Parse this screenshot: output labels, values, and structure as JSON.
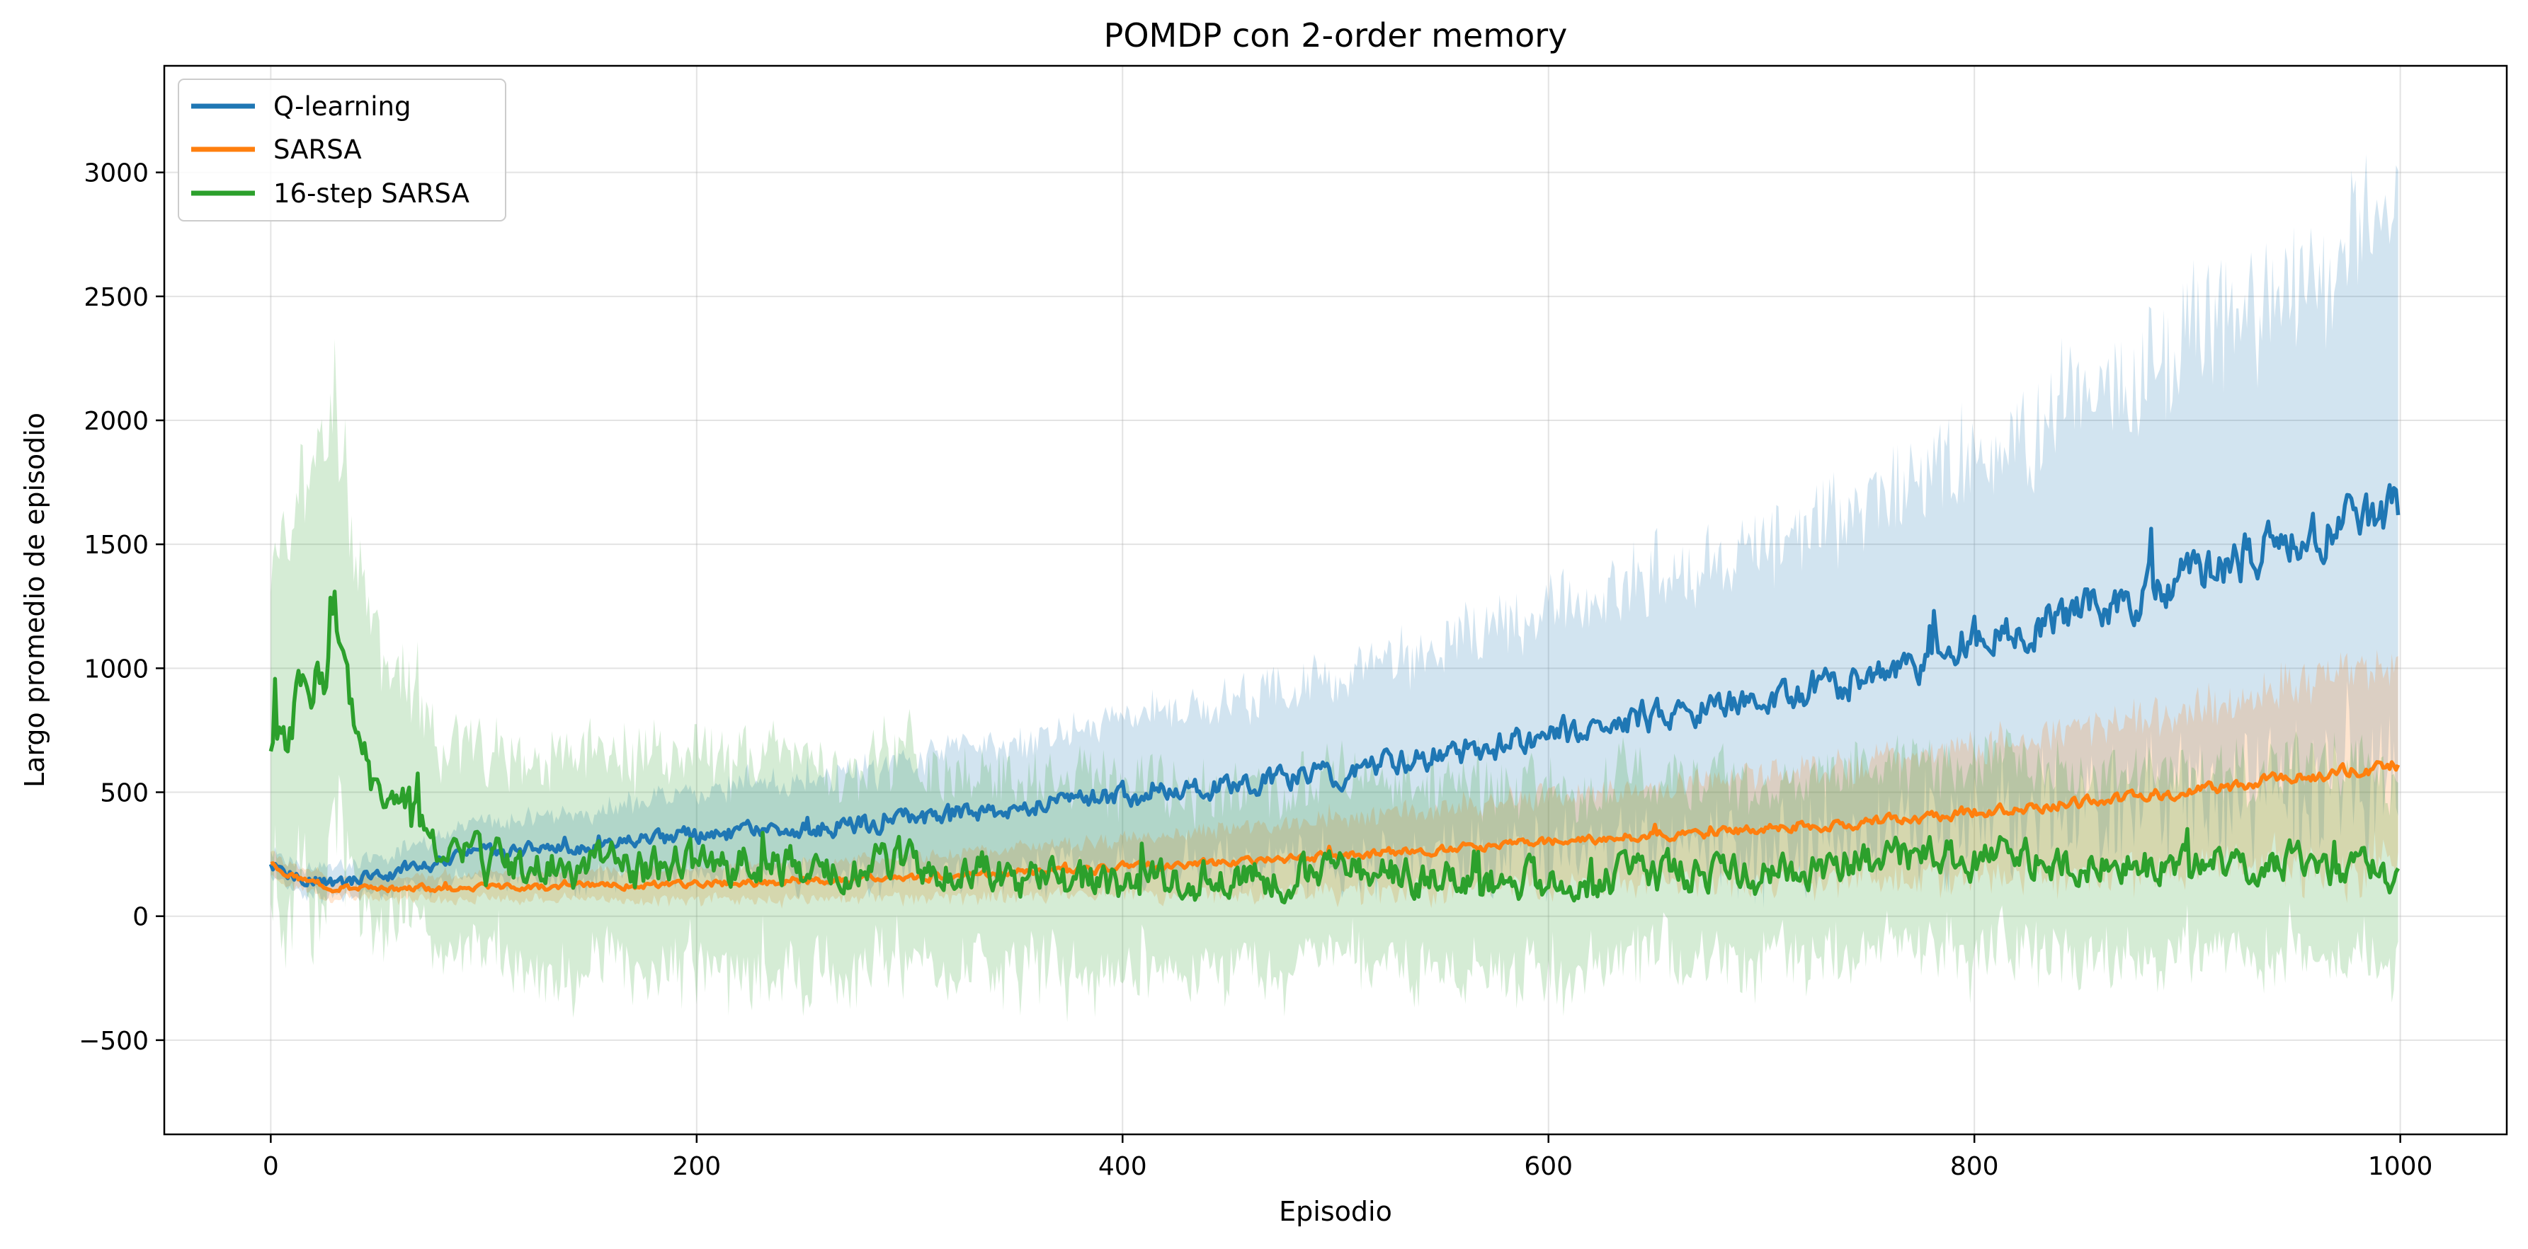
{
  "chart_data": {
    "type": "line",
    "title": "POMDP con 2-order memory",
    "xlabel": "Episodio",
    "ylabel": "Largo promedio de episodio",
    "xlim": [
      -50,
      1050
    ],
    "ylim": [
      -880,
      3430
    ],
    "xticks": [
      0,
      200,
      400,
      600,
      800,
      1000
    ],
    "yticks": [
      -500,
      0,
      500,
      1000,
      1500,
      2000,
      2500,
      3000
    ],
    "xtick_labels": [
      "0",
      "200",
      "400",
      "600",
      "800",
      "1000"
    ],
    "ytick_labels": [
      "−500",
      "0",
      "500",
      "1000",
      "1500",
      "2000",
      "2500",
      "3000"
    ],
    "grid": true,
    "legend_position": "top-left",
    "n_episodes": 1000,
    "series": [
      {
        "name": "Q-learning",
        "color": "#1f77b4",
        "anchors_x": [
          0,
          10,
          30,
          50,
          100,
          150,
          200,
          250,
          300,
          350,
          400,
          450,
          500,
          550,
          600,
          650,
          700,
          750,
          800,
          850,
          900,
          950,
          1000
        ],
        "anchors_mean": [
          220,
          170,
          130,
          165,
          250,
          290,
          320,
          350,
          390,
          440,
          480,
          530,
          580,
          650,
          730,
          810,
          880,
          970,
          1100,
          1230,
          1370,
          1520,
          1650
        ],
        "anchors_band": [
          60,
          55,
          60,
          70,
          110,
          140,
          170,
          200,
          230,
          260,
          300,
          340,
          380,
          440,
          500,
          560,
          620,
          680,
          780,
          860,
          950,
          1050,
          1150
        ],
        "noise": 55
      },
      {
        "name": "SARSA",
        "color": "#ff7f0e",
        "anchors_x": [
          0,
          10,
          30,
          50,
          100,
          150,
          200,
          250,
          300,
          350,
          400,
          450,
          500,
          550,
          600,
          650,
          700,
          750,
          800,
          850,
          900,
          950,
          1000
        ],
        "anchors_mean": [
          215,
          160,
          115,
          110,
          115,
          120,
          130,
          140,
          155,
          175,
          195,
          220,
          245,
          270,
          300,
          325,
          345,
          380,
          420,
          460,
          500,
          560,
          610
        ],
        "anchors_band": [
          50,
          45,
          45,
          45,
          55,
          60,
          65,
          75,
          85,
          100,
          115,
          130,
          150,
          165,
          185,
          200,
          220,
          240,
          270,
          300,
          330,
          370,
          420
        ],
        "noise": 28
      },
      {
        "name": "16-step SARSA",
        "color": "#2ca02c",
        "anchors_x": [
          0,
          5,
          10,
          15,
          20,
          25,
          30,
          35,
          40,
          45,
          50,
          60,
          70,
          80,
          100,
          150,
          200,
          250,
          300,
          350,
          400,
          450,
          500,
          550,
          600,
          650,
          700,
          750,
          800,
          850,
          900,
          950,
          1000
        ],
        "anchors_mean": [
          680,
          800,
          760,
          920,
          980,
          940,
          1150,
          950,
          800,
          600,
          520,
          470,
          420,
          300,
          230,
          190,
          210,
          200,
          230,
          160,
          130,
          150,
          170,
          150,
          130,
          170,
          170,
          230,
          240,
          210,
          190,
          220,
          160
        ],
        "anchors_band": [
          600,
          700,
          750,
          800,
          850,
          850,
          850,
          800,
          700,
          600,
          550,
          480,
          450,
          400,
          420,
          440,
          450,
          440,
          430,
          400,
          380,
          370,
          380,
          380,
          380,
          370,
          370,
          380,
          390,
          380,
          370,
          380,
          360
        ],
        "noise": 85
      }
    ]
  }
}
